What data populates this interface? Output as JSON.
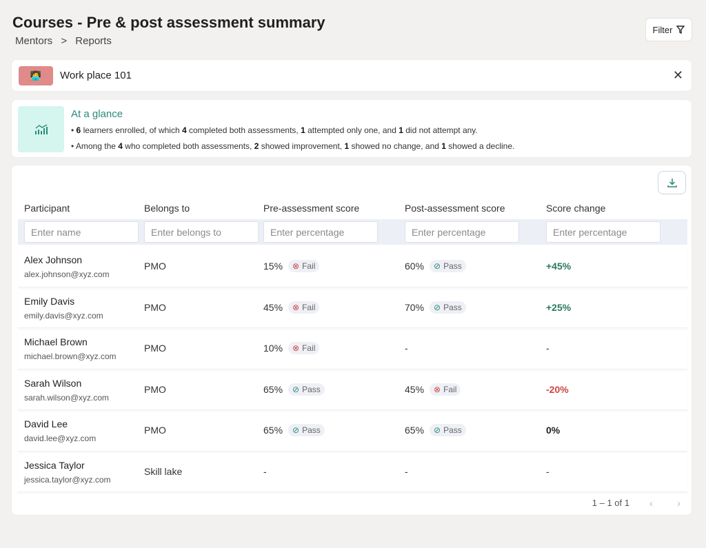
{
  "header": {
    "title": "Courses - Pre & post assessment summary",
    "breadcrumb": [
      "Mentors",
      ">",
      "Reports"
    ],
    "filter_label": "Filter"
  },
  "course": {
    "name": "Work place 101"
  },
  "glance": {
    "title": "At a glance",
    "lines": [
      [
        {
          "t": "6",
          "b": true
        },
        {
          "t": " learners enrolled, of which "
        },
        {
          "t": "4",
          "b": true
        },
        {
          "t": " completed both assessments, "
        },
        {
          "t": "1",
          "b": true
        },
        {
          "t": " attempted only one, and "
        },
        {
          "t": "1",
          "b": true
        },
        {
          "t": " did not attempt any."
        }
      ],
      [
        {
          "t": "Among the "
        },
        {
          "t": "4",
          "b": true
        },
        {
          "t": " who completed both assessments, "
        },
        {
          "t": "2",
          "b": true
        },
        {
          "t": " showed improvement, "
        },
        {
          "t": "1",
          "b": true
        },
        {
          "t": " showed no change, and "
        },
        {
          "t": "1",
          "b": true
        },
        {
          "t": " showed a decline."
        }
      ]
    ]
  },
  "table": {
    "columns": [
      "Participant",
      "Belongs to",
      "Pre-assessment score",
      "Post-assessment score",
      "Score change"
    ],
    "filters": [
      "Enter name",
      "Enter belongs to",
      "Enter percentage",
      "Enter percentage",
      "Enter percentage"
    ],
    "rows": [
      {
        "name": "Alex Johnson",
        "email": "alex.johnson@xyz.com",
        "group": "PMO",
        "pre": "15%",
        "pre_status": "Fail",
        "post": "60%",
        "post_status": "Pass",
        "change": "+45%",
        "trend": "pos"
      },
      {
        "name": "Emily Davis",
        "email": "emily.davis@xyz.com",
        "group": "PMO",
        "pre": "45%",
        "pre_status": "Fail",
        "post": "70%",
        "post_status": "Pass",
        "change": "+25%",
        "trend": "pos"
      },
      {
        "name": "Michael Brown",
        "email": "michael.brown@xyz.com",
        "group": "PMO",
        "pre": "10%",
        "pre_status": "Fail",
        "post": "-",
        "post_status": "",
        "change": "-",
        "trend": "none"
      },
      {
        "name": "Sarah Wilson",
        "email": "sarah.wilson@xyz.com",
        "group": "PMO",
        "pre": "65%",
        "pre_status": "Pass",
        "post": "45%",
        "post_status": "Fail",
        "change": "-20%",
        "trend": "neg"
      },
      {
        "name": "David Lee",
        "email": "david.lee@xyz.com",
        "group": "PMO",
        "pre": "65%",
        "pre_status": "Pass",
        "post": "65%",
        "post_status": "Pass",
        "change": "0%",
        "trend": "zero"
      },
      {
        "name": "Jessica Taylor",
        "email": "jessica.taylor@xyz.com",
        "group": "Skill lake",
        "pre": "-",
        "pre_status": "",
        "post": "-",
        "post_status": "",
        "change": "-",
        "trend": "none"
      }
    ]
  },
  "pagination": {
    "range": "1 – 1 of 1"
  },
  "colors": {
    "accent": "#2a8a78",
    "pass": "#2a8a78",
    "fail": "#d0453f",
    "background": "#f2f1ef"
  }
}
